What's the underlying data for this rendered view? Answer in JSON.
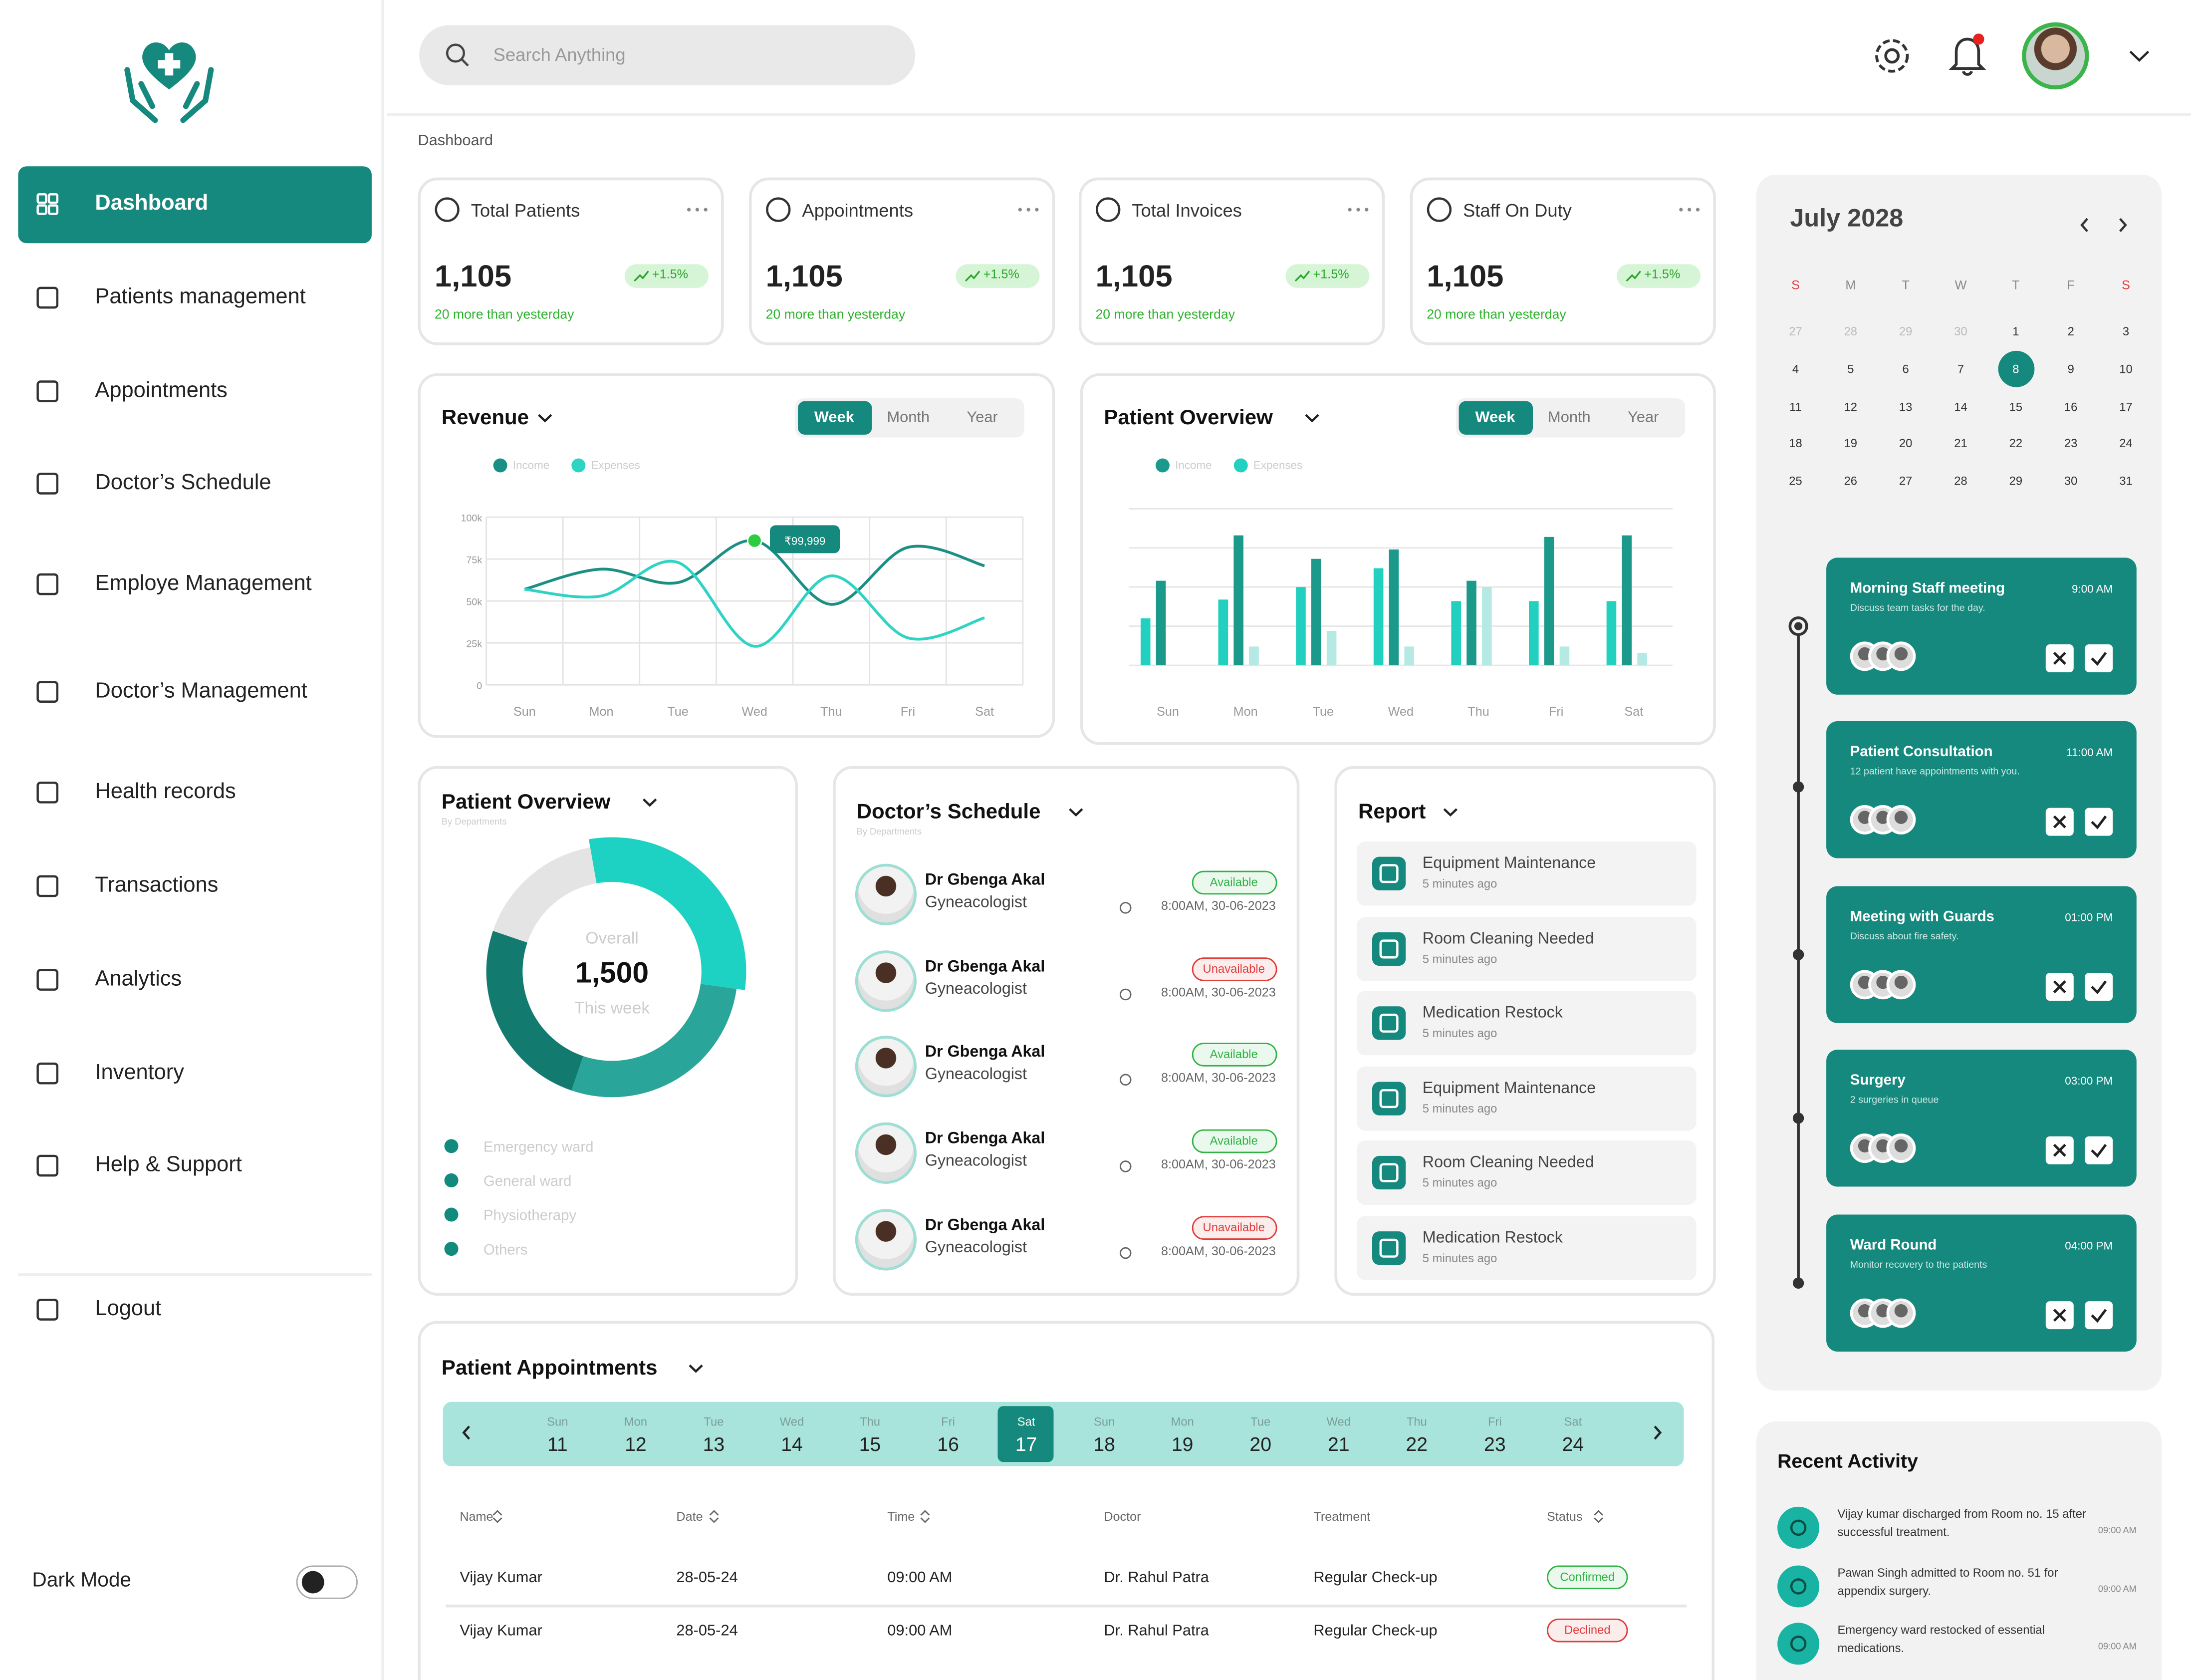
{
  "sidebar": {
    "nav": [
      "Dashboard",
      "Patients management",
      "Appointments",
      "Doctor’s Schedule",
      "Employe Management",
      "Doctor’s Management",
      "Health records",
      "Transactions",
      "Analytics",
      "Inventory",
      "Help & Support"
    ],
    "active": 0,
    "logout": "Logout",
    "dark_mode": "Dark Mode"
  },
  "header": {
    "search_placeholder": "Search Anything"
  },
  "breadcrumb": "Dashboard",
  "stats": [
    {
      "title": "Total Patients",
      "value": "1,105",
      "change": "+1.5%",
      "note": "20 more than yesterday"
    },
    {
      "title": "Appointments",
      "value": "1,105",
      "change": "+1.5%",
      "note": "20 more than yesterday"
    },
    {
      "title": "Total Invoices",
      "value": "1,105",
      "change": "+1.5%",
      "note": "20 more than yesterday"
    },
    {
      "title": "Staff On Duty",
      "value": "1,105",
      "change": "+1.5%",
      "note": "20 more than yesterday"
    }
  ],
  "revenue": {
    "type": "line",
    "title": "Revenue",
    "tabs": [
      "Week",
      "Month",
      "Year"
    ],
    "active_tab": 0,
    "categories": [
      "Sun",
      "Mon",
      "Tue",
      "Wed",
      "Thu",
      "Fri",
      "Sat"
    ],
    "ylim": [
      0,
      100000
    ],
    "yticks": [
      {
        "value": 0,
        "label": "0"
      },
      {
        "value": 25000,
        "label": "25k"
      },
      {
        "value": 50000,
        "label": "50k"
      },
      {
        "value": 75000,
        "label": "75k"
      },
      {
        "value": 100000,
        "label": "100k"
      }
    ],
    "series": [
      {
        "name": "Income",
        "color": "#1b8f84",
        "values": [
          57000,
          69000,
          61000,
          86000,
          48000,
          82000,
          71000
        ]
      },
      {
        "name": "Expenses",
        "color": "#2fd3c4",
        "values": [
          57000,
          53000,
          73000,
          23000,
          65000,
          28000,
          40000
        ]
      }
    ],
    "tooltip": "₹99,999"
  },
  "patient_overview_bars": {
    "type": "bar",
    "title": "Patient Overview",
    "tabs": [
      "Week",
      "Month",
      "Year"
    ],
    "active_tab": 0,
    "categories": [
      "Sun",
      "Mon",
      "Tue",
      "Wed",
      "Thu",
      "Fri",
      "Sat"
    ],
    "ylim": [
      0,
      100
    ],
    "series": [
      {
        "name": "Income",
        "color": "#1b9a8c",
        "values": [
          54,
          83,
          68,
          74,
          54,
          82,
          83
        ]
      },
      {
        "name": "Expenses",
        "color": "#22d0c0",
        "values": [
          30,
          42,
          50,
          62,
          41,
          41,
          41
        ]
      },
      {
        "color": "#b5e9e3",
        "values": [
          null,
          12,
          22,
          12,
          50,
          12,
          8
        ]
      }
    ]
  },
  "patient_overview_donut": {
    "type": "pie",
    "title": "Patient Overview",
    "subtitle": "By Departments",
    "center_label": "Overall",
    "center_value": "1,500",
    "center_sub": "This week",
    "categories": [
      "Emergency ward",
      "General ward",
      "Physiotherapy",
      "Others"
    ],
    "values": [
      30,
      28,
      25,
      17
    ],
    "colors": [
      "#1ed2c3",
      "#2aa59a",
      "#137a70",
      "#e4e4e4"
    ]
  },
  "doctor_schedule": {
    "title": "Doctor’s Schedule",
    "subtitle": "By Departments",
    "entries": [
      {
        "name": "Dr Gbenga Akal",
        "specialty": "Gyneacologist",
        "status": "Available",
        "status_color": "#2fb344",
        "time": "8:00AM, 30-06-2023"
      },
      {
        "name": "Dr Gbenga Akal",
        "specialty": "Gyneacologist",
        "status": "Unavailable",
        "status_color": "#e23b3b",
        "time": "8:00AM, 30-06-2023"
      },
      {
        "name": "Dr Gbenga Akal",
        "specialty": "Gyneacologist",
        "status": "Available",
        "status_color": "#2fb344",
        "time": "8:00AM, 30-06-2023"
      },
      {
        "name": "Dr Gbenga Akal",
        "specialty": "Gyneacologist",
        "status": "Available",
        "status_color": "#2fb344",
        "time": "8:00AM, 30-06-2023"
      },
      {
        "name": "Dr Gbenga Akal",
        "specialty": "Gyneacologist",
        "status": "Unavailable",
        "status_color": "#e23b3b",
        "time": "8:00AM, 30-06-2023"
      }
    ]
  },
  "report": {
    "title": "Report",
    "items": [
      {
        "title": "Equipment Maintenance",
        "time": "5 minutes ago"
      },
      {
        "title": "Room Cleaning Needed",
        "time": "5 minutes ago"
      },
      {
        "title": "Medication Restock",
        "time": "5 minutes ago"
      },
      {
        "title": "Equipment Maintenance",
        "time": "5 minutes ago"
      },
      {
        "title": "Room Cleaning Needed",
        "time": "5 minutes ago"
      },
      {
        "title": "Medication Restock",
        "time": "5 minutes ago"
      }
    ]
  },
  "calendar": {
    "month": "July 2028",
    "weekdays": [
      "S",
      "M",
      "T",
      "W",
      "T",
      "F",
      "S"
    ],
    "days": [
      "27",
      "28",
      "29",
      "30",
      "1",
      "2",
      "3",
      "4",
      "5",
      "6",
      "7",
      "8",
      "9",
      "10",
      "11",
      "12",
      "13",
      "14",
      "15",
      "16",
      "17",
      "18",
      "19",
      "20",
      "21",
      "22",
      "23",
      "24",
      "25",
      "26",
      "27",
      "28",
      "29",
      "30",
      "31"
    ],
    "outside": [
      0,
      1,
      2,
      3
    ],
    "selected": 11
  },
  "events": [
    {
      "title": "Morning Staff meeting",
      "time": "9:00 AM",
      "description": "Discuss team tasks for the day."
    },
    {
      "title": "Patient Consultation",
      "time": "11:00 AM",
      "description": "12 patient have appointments with you."
    },
    {
      "title": "Meeting with Guards",
      "time": "01:00 PM",
      "description": "Discuss about fire safety."
    },
    {
      "title": "Surgery",
      "time": "03:00 PM",
      "description": "2 surgeries in queue"
    },
    {
      "title": "Ward Round",
      "time": "04:00 PM",
      "description": "Monitor recovery to the patients"
    }
  ],
  "appointments": {
    "title": "Patient Appointments",
    "days": [
      {
        "dow": "Sun",
        "day": "11"
      },
      {
        "dow": "Mon",
        "day": "12"
      },
      {
        "dow": "Tue",
        "day": "13"
      },
      {
        "dow": "Wed",
        "day": "14"
      },
      {
        "dow": "Thu",
        "day": "15"
      },
      {
        "dow": "Fri",
        "day": "16"
      },
      {
        "dow": "Sat",
        "day": "17"
      },
      {
        "dow": "Sun",
        "day": "18"
      },
      {
        "dow": "Mon",
        "day": "19"
      },
      {
        "dow": "Tue",
        "day": "20"
      },
      {
        "dow": "Wed",
        "day": "21"
      },
      {
        "dow": "Thu",
        "day": "22"
      },
      {
        "dow": "Fri",
        "day": "23"
      },
      {
        "dow": "Sat",
        "day": "24"
      }
    ],
    "selected": 6,
    "columns": [
      "Name",
      "Date",
      "Time",
      "Doctor",
      "Treatment",
      "Status"
    ],
    "rows": [
      [
        "Vijay Kumar",
        "28-05-24",
        "09:00 AM",
        "Dr. Rahul Patra",
        "Regular Check-up",
        "Confirmed"
      ],
      [
        "Vijay Kumar",
        "28-05-24",
        "09:00 AM",
        "Dr. Rahul Patra",
        "Regular Check-up",
        "Declined"
      ]
    ],
    "status_colors": [
      "#2fb344",
      "#e23b3b"
    ]
  },
  "recent_activity": {
    "title": "Recent Activity",
    "items": [
      {
        "text": "Vijay kumar discharged from Room no. 15 after successful treatment.",
        "time": "09:00 AM"
      },
      {
        "text": "Pawan Singh admitted to Room no. 51 for appendix surgery.",
        "time": "09:00 AM"
      },
      {
        "text": "Emergency ward restocked of essential medications.",
        "time": "09:00 AM"
      }
    ]
  }
}
